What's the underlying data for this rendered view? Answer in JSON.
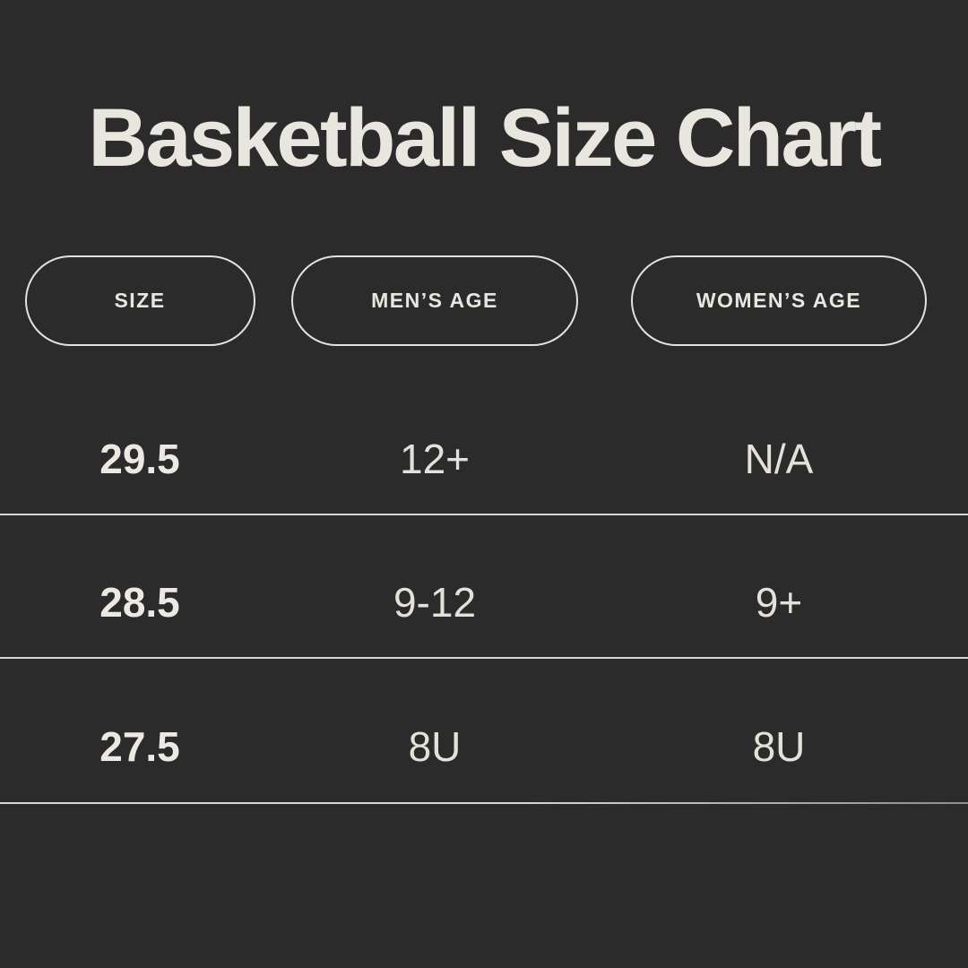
{
  "title": "Basketball Size Chart",
  "colors": {
    "background": "#2b2b2b",
    "text": "#e9e6e0",
    "divider": "#d8d5cf",
    "pill_border": "#e5e2dc"
  },
  "chart_data": {
    "type": "table",
    "title": "Basketball Size Chart",
    "columns": [
      "SIZE",
      "MEN’S AGE",
      "WOMEN’S AGE"
    ],
    "rows": [
      [
        "29.5",
        "12+",
        "N/A"
      ],
      [
        "28.5",
        "9-12",
        "9+"
      ],
      [
        "27.5",
        "8U",
        "8U"
      ]
    ],
    "layout_hints": {
      "header_style": "outlined-pill",
      "row_dividers": true,
      "theme": "dark"
    }
  }
}
